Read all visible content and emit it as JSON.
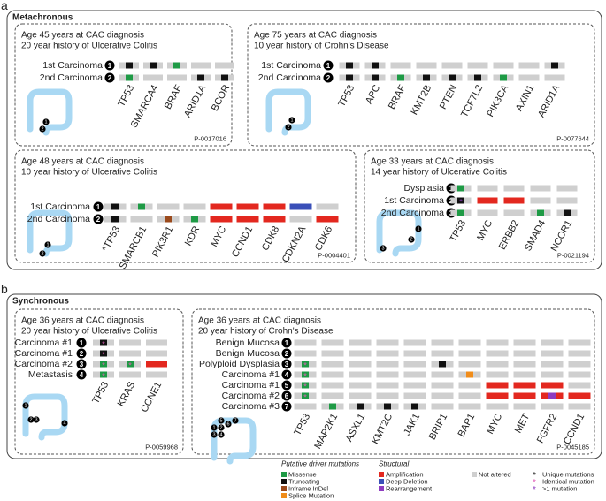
{
  "panels": [
    {
      "letter": "a",
      "title": "Metachronous",
      "cases": [
        {
          "lines": [
            "Age 45 years at CAC diagnosis",
            "20 year history of Ulcerative Colitis"
          ],
          "samples": [
            {
              "number": 1,
              "label": "1st Carcinoma"
            },
            {
              "number": 2,
              "label": "2nd Carcinoma"
            }
          ],
          "genes": [
            "TP53",
            "SMARCA4",
            "BRAF",
            "ARID1A",
            "BCOR"
          ],
          "cells": [
            [
              [
                "Truncating"
              ],
              [
                "Truncating"
              ],
              [
                "Missense"
              ],
              null,
              null
            ],
            [
              [
                "Missense"
              ],
              null,
              null,
              [
                "Truncating"
              ],
              [
                "Truncating"
              ]
            ]
          ],
          "id": "P-0017016"
        },
        {
          "lines": [
            "Age 75 years at CAC diagnosis",
            "10 year history of Crohn's Disease"
          ],
          "samples": [
            {
              "number": 1,
              "label": "1st Carcinoma"
            },
            {
              "number": 2,
              "label": "2nd Carcinoma"
            }
          ],
          "genes": [
            "TP53",
            "APC",
            "BRAF",
            "KMT2B",
            "PTEN",
            "TCF7L2",
            "PIK3CA",
            "AXIN1",
            "ARID1A"
          ],
          "cells": [
            [
              [
                "Truncating"
              ],
              [
                "Truncating"
              ],
              null,
              null,
              null,
              null,
              null,
              null,
              [
                "Truncating"
              ]
            ],
            [
              [
                "Truncating"
              ],
              [
                "Truncating"
              ],
              [
                "Missense"
              ],
              [
                "Truncating"
              ],
              [
                "Truncating"
              ],
              [
                "Truncating"
              ],
              [
                "Missense"
              ],
              null,
              null
            ]
          ],
          "id": "P-0077644"
        },
        {
          "lines": [
            "Age 48 years at CAC diagnosis",
            "10 year history of Ulcerative Colitis"
          ],
          "samples": [
            {
              "number": 1,
              "label": "1st Carcinoma"
            },
            {
              "number": 2,
              "label": "2nd Carcinoma"
            }
          ],
          "genes": [
            "*TP53",
            "SMARCB1",
            "PIK3R1",
            "KDR",
            "MYC",
            "CCND1",
            "CDK8",
            "CDKN2A",
            "CDK6"
          ],
          "cells": [
            [
              [
                "Truncating"
              ],
              [
                "Missense"
              ],
              null,
              null,
              [
                "Amplification"
              ],
              [
                "Amplification"
              ],
              [
                "Amplification"
              ],
              [
                "Deep Deletion"
              ],
              null
            ],
            [
              [
                "Truncating"
              ],
              null,
              [
                "Inframe InDel"
              ],
              [
                "Missense"
              ],
              [
                "Amplification"
              ],
              [
                "Amplification"
              ],
              [
                "Amplification"
              ],
              null,
              [
                "Amplification"
              ]
            ]
          ],
          "id": "P-0004401"
        },
        {
          "lines": [
            "Age 33 years at CAC diagnosis",
            "14 year history of Ulcerative Colitis"
          ],
          "samples": [
            {
              "number": 1,
              "label": "Dysplasia"
            },
            {
              "number": 2,
              "label": "1st Carcinoma"
            },
            {
              "number": 3,
              "label": "2nd Carcinoma"
            }
          ],
          "genes": [
            "TP53",
            "MYC",
            "ERBB2",
            "SMAD4",
            "NCOR1"
          ],
          "cells": [
            [
              [
                "Missense"
              ],
              null,
              null,
              null,
              null
            ],
            [
              [
                "Truncating",
                ">1 mutation"
              ],
              [
                "Amplification"
              ],
              [
                "Amplification"
              ],
              null,
              null
            ],
            [
              [
                "Missense"
              ],
              null,
              null,
              [
                "Missense"
              ],
              [
                "Truncating"
              ]
            ]
          ],
          "id": "P-0021194"
        }
      ]
    },
    {
      "letter": "b",
      "title": "Synchronous",
      "cases": [
        {
          "lines": [
            "Age 36 years at CAC diagnosis",
            "20 year history of Ulcerative Colitis"
          ],
          "samples": [
            {
              "number": 1,
              "label": "Carcinoma #1"
            },
            {
              "number": 2,
              "label": "Carcinoma #1"
            },
            {
              "number": 3,
              "label": "Carcinoma #2"
            },
            {
              "number": 4,
              "label": "Metastasis"
            }
          ],
          "genes": [
            "TP53",
            "KRAS",
            "CCNE1"
          ],
          "cells": [
            [
              [
                "Truncating",
                "Identical mutation"
              ],
              null,
              null
            ],
            [
              [
                "Truncating",
                "Identical mutation"
              ],
              null,
              null
            ],
            [
              [
                "Missense",
                "Identical mutation"
              ],
              [
                "Missense",
                "Identical mutation"
              ],
              [
                "Amplification"
              ]
            ],
            [
              [
                "Missense",
                "Identical mutation"
              ],
              null,
              null
            ]
          ],
          "id": "P-0059968"
        },
        {
          "lines": [
            "Age 36 years at CAC diagnosis",
            "20 year history of Crohn's Disease"
          ],
          "samples": [
            {
              "number": 1,
              "label": "Benign Mucosa"
            },
            {
              "number": 2,
              "label": "Benign Mucosa"
            },
            {
              "number": 3,
              "label": "Polyploid Dysplasia"
            },
            {
              "number": 4,
              "label": "Carcinoma #1"
            },
            {
              "number": 5,
              "label": "Carcinoma #1"
            },
            {
              "number": 6,
              "label": "Carcinoma #2"
            },
            {
              "number": 7,
              "label": "Carcinoma #3"
            }
          ],
          "genes": [
            "TP53",
            "MAP2K1",
            "ASXL1",
            "KMT2C",
            "JAK1",
            "BRIP1",
            "BAP1",
            "MYC",
            "MET",
            "FGFR2",
            "CCND1"
          ],
          "cells": [
            [
              null,
              null,
              null,
              null,
              null,
              null,
              null,
              null,
              null,
              null,
              null
            ],
            [
              null,
              null,
              null,
              null,
              null,
              null,
              null,
              null,
              null,
              null,
              null
            ],
            [
              [
                "Missense",
                "Identical mutation"
              ],
              null,
              null,
              null,
              null,
              [
                "Truncating"
              ],
              null,
              null,
              null,
              null,
              null
            ],
            [
              [
                "Missense",
                "Identical mutation"
              ],
              null,
              null,
              null,
              null,
              null,
              [
                "Splice Mutation"
              ],
              null,
              null,
              null,
              null
            ],
            [
              [
                "Missense",
                "Identical mutation"
              ],
              null,
              null,
              null,
              null,
              null,
              null,
              [
                "Amplification"
              ],
              [
                "Amplification"
              ],
              [
                "Amplification"
              ],
              null
            ],
            [
              [
                "Missense",
                "Identical mutation"
              ],
              null,
              null,
              null,
              null,
              null,
              null,
              [
                "Amplification"
              ],
              [
                "Amplification"
              ],
              [
                "Amplification",
                "Rearrangement"
              ],
              [
                "Amplification"
              ]
            ],
            [
              null,
              [
                "Missense"
              ],
              [
                "Truncating"
              ],
              [
                "Truncating"
              ],
              [
                "Truncating"
              ],
              null,
              null,
              null,
              null,
              null,
              null
            ]
          ],
          "id": "P-0045185"
        }
      ]
    }
  ],
  "legend": {
    "groups": [
      {
        "title": "Putative driver mutations",
        "items": [
          {
            "label": "Missense",
            "color": "#1e9a45"
          },
          {
            "label": "Truncating",
            "color": "#111111"
          },
          {
            "label": "Inframe InDel",
            "color": "#9b4a1c"
          },
          {
            "label": "Splice Mutation",
            "color": "#f08c1a"
          }
        ]
      },
      {
        "title": "Structural",
        "items": [
          {
            "label": "Amplification",
            "color": "#e3281f"
          },
          {
            "label": "Deep Deletion",
            "color": "#3a4fb8"
          },
          {
            "label": "Rearrangement",
            "color": "#8e3cc0"
          }
        ]
      },
      {
        "items": [
          {
            "label": "Not altered",
            "color": "#cfcfcf"
          }
        ]
      },
      {
        "items": [
          {
            "label": "Unique mutations",
            "symbol": "*",
            "color": "#111111"
          },
          {
            "label": "Identical mutation",
            "symbol": "*",
            "color": "#e05bb5"
          },
          {
            "label": ">1 mutation",
            "symbol": "*",
            "color": "#8e3cc0"
          }
        ]
      }
    ]
  }
}
